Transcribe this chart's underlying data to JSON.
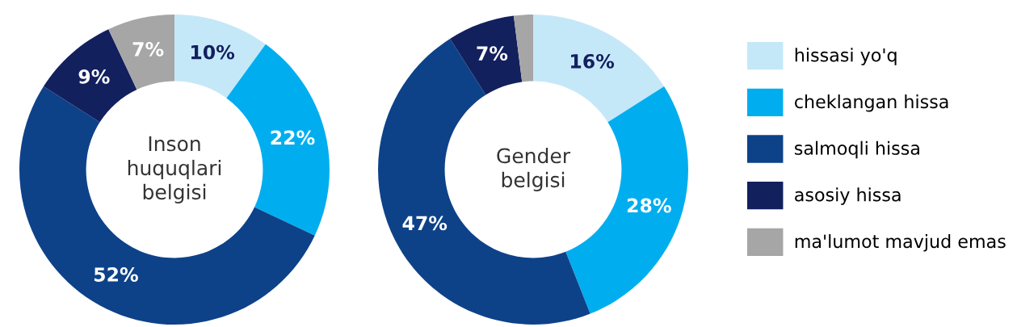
{
  "chart_data": [
    {
      "type": "donut",
      "title": "Inson\nhuquqlari\nbelgisi",
      "categories": [
        "hissasi yo'q",
        "cheklangan hissa",
        "salmoqli hissa",
        "asosiy hissa",
        "ma'lumot mavjud emas"
      ],
      "values": [
        10,
        22,
        52,
        9,
        7
      ],
      "colors": [
        "#c5e8f9",
        "#00aeef",
        "#0d4289",
        "#13205e",
        "#a6a6a6"
      ],
      "value_labels": [
        "10%",
        "22%",
        "52%",
        "9%",
        "7%"
      ],
      "legend": "right"
    },
    {
      "type": "donut",
      "title": "Gender\nbelgisi",
      "categories": [
        null,
        null,
        null,
        null,
        null
      ],
      "values": [
        16,
        28,
        47,
        7,
        2
      ],
      "colors": [
        "#c5e8f9",
        "#00aeef",
        "#0d4289",
        "#13205e",
        "#a6a6a6"
      ],
      "value_labels": [
        "16%",
        "28%",
        "47%",
        "7%",
        null
      ]
    }
  ]
}
